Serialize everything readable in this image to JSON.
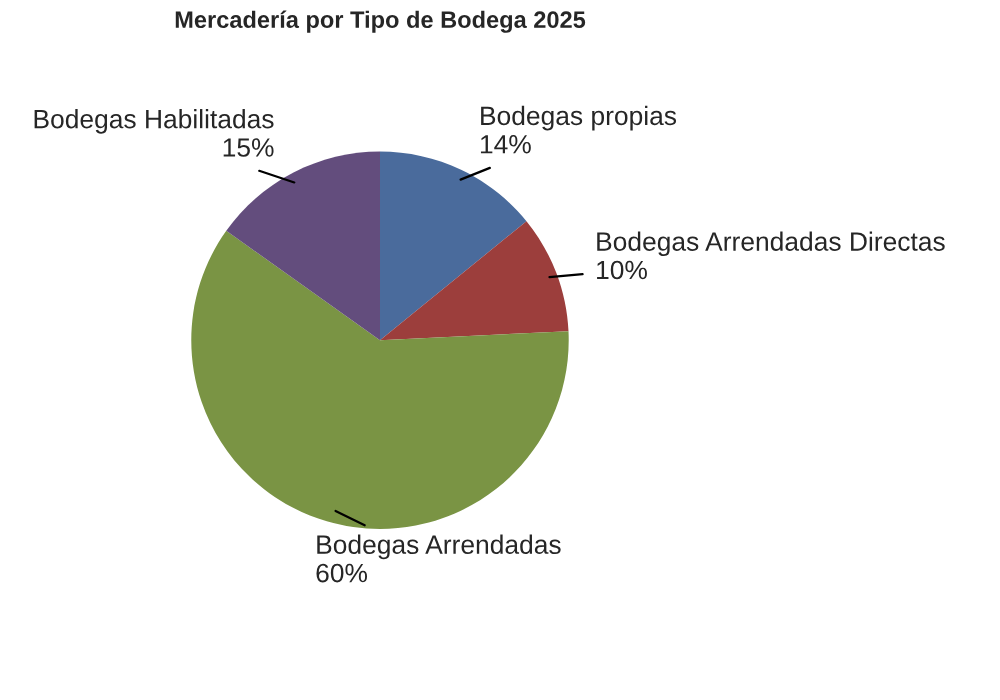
{
  "chart_data": {
    "type": "pie",
    "title": "Mercadería por Tipo de Bodega 2025",
    "categories": [
      "Bodegas propias",
      "Bodegas Arrendadas Directas",
      "Bodegas Arrendadas",
      "Bodegas Habilitadas"
    ],
    "values": [
      14,
      10,
      60,
      15
    ],
    "colors": [
      "#4a6b9c",
      "#9c3e3c",
      "#7a9444",
      "#634d7d"
    ],
    "value_labels": [
      "14%",
      "10%",
      "60%",
      "15%"
    ],
    "legend": false
  }
}
